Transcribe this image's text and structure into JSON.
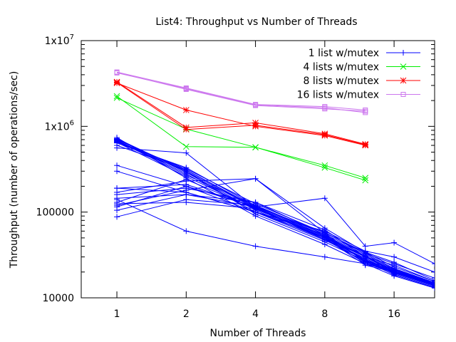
{
  "chart_data": {
    "type": "line",
    "title": "List4: Throughput vs Number of Threads",
    "xlabel": "Number of Threads",
    "ylabel": "Throughput (number of operations/sec)",
    "xscale": "log2",
    "yscale": "log10",
    "xlim": [
      0.7,
      24
    ],
    "ylim": [
      10000,
      10000000
    ],
    "x_ticks": [
      {
        "value": 1,
        "label": "1"
      },
      {
        "value": 2,
        "label": "2"
      },
      {
        "value": 4,
        "label": "4"
      },
      {
        "value": 8,
        "label": "8"
      },
      {
        "value": 16,
        "label": "16"
      }
    ],
    "y_ticks": [
      {
        "value": 10000,
        "mantissa": "10000",
        "exp": ""
      },
      {
        "value": 100000,
        "mantissa": "100000",
        "exp": ""
      },
      {
        "value": 1000000,
        "mantissa": "1x10",
        "exp": "6"
      },
      {
        "value": 10000000,
        "mantissa": "1x10",
        "exp": "7"
      }
    ],
    "legend_position": "top-right",
    "series": [
      {
        "name": "1 list w/mutex",
        "color": "#0000ff",
        "marker": "plus",
        "x": [
          1,
          2,
          4,
          8,
          12,
          16,
          24
        ],
        "runs": [
          [
            720000,
            300000,
            110000,
            50000,
            30000,
            20000,
            14000
          ],
          [
            710000,
            290000,
            105000,
            48000,
            29000,
            19500,
            13800
          ],
          [
            700000,
            310000,
            115000,
            52000,
            31000,
            21000,
            14500
          ],
          [
            690000,
            280000,
            100000,
            47000,
            28000,
            19000,
            13500
          ],
          [
            680000,
            270000,
            120000,
            55000,
            33000,
            22000,
            15000
          ],
          [
            670000,
            320000,
            125000,
            57000,
            34000,
            23000,
            15500
          ],
          [
            660000,
            300000,
            95000,
            45000,
            27000,
            18500,
            13200
          ],
          [
            650000,
            260000,
            108000,
            51000,
            30500,
            20500,
            14200
          ],
          [
            640000,
            330000,
            118000,
            53000,
            32000,
            21500,
            14800
          ],
          [
            600000,
            310000,
            112000,
            50000,
            30000,
            20000,
            14000
          ],
          [
            560000,
            490000,
            112000,
            48000,
            29000,
            19500,
            14000
          ],
          [
            740000,
            250000,
            90000,
            42000,
            25000,
            18000,
            13000
          ],
          [
            350000,
            200000,
            115000,
            145000,
            40000,
            44000,
            25000
          ],
          [
            190000,
            170000,
            100000,
            60000,
            35000,
            30000,
            20000
          ],
          [
            190000,
            210000,
            115000,
            58000,
            33000,
            25000,
            17000
          ],
          [
            170000,
            230000,
            245000,
            65000,
            34000,
            26000,
            16000
          ],
          [
            160000,
            190000,
            130000,
            62000,
            30000,
            24000,
            15500
          ],
          [
            145000,
            160000,
            130000,
            55000,
            27000,
            22000,
            15000
          ],
          [
            130000,
            240000,
            110000,
            52000,
            25000,
            21000,
            14500
          ],
          [
            120000,
            180000,
            245000,
            57000,
            26000,
            21500,
            14300
          ],
          [
            115000,
            200000,
            100000,
            50000,
            24000,
            20000,
            14000
          ],
          [
            105000,
            160000,
            115000,
            48000,
            26000,
            19500,
            14100
          ],
          [
            88000,
            140000,
            120000,
            53000,
            27000,
            20500,
            14600
          ],
          [
            125000,
            130000,
            110000,
            50000,
            28000,
            20000,
            14200
          ],
          [
            300000,
            170000,
            100000,
            55000,
            26500,
            19800,
            14100
          ],
          [
            140000,
            60000,
            40000,
            30000,
            25000,
            20000,
            15000
          ]
        ]
      },
      {
        "name": "4 lists w/mutex",
        "color": "#00ee00",
        "marker": "x",
        "x": [
          1,
          2,
          4,
          8,
          12
        ],
        "runs": [
          [
            2250000,
            580000,
            570000,
            350000,
            250000
          ],
          [
            2150000,
            930000,
            570000,
            330000,
            235000
          ]
        ]
      },
      {
        "name": "8 lists w/mutex",
        "color": "#ff0000",
        "marker": "star",
        "x": [
          1,
          2,
          4,
          8,
          12
        ],
        "runs": [
          [
            3300000,
            970000,
            1100000,
            820000,
            620000
          ],
          [
            3250000,
            920000,
            1030000,
            800000,
            610000
          ],
          [
            3200000,
            1550000,
            1000000,
            780000,
            600000
          ]
        ]
      },
      {
        "name": "16 lists w/mutex",
        "color": "#cc77ee",
        "marker": "box",
        "x": [
          1,
          2,
          4,
          8,
          12
        ],
        "runs": [
          [
            4300000,
            2800000,
            1800000,
            1700000,
            1550000
          ],
          [
            4200000,
            2750000,
            1780000,
            1650000,
            1450000
          ],
          [
            4250000,
            2700000,
            1750000,
            1600000,
            1500000
          ]
        ]
      }
    ]
  }
}
